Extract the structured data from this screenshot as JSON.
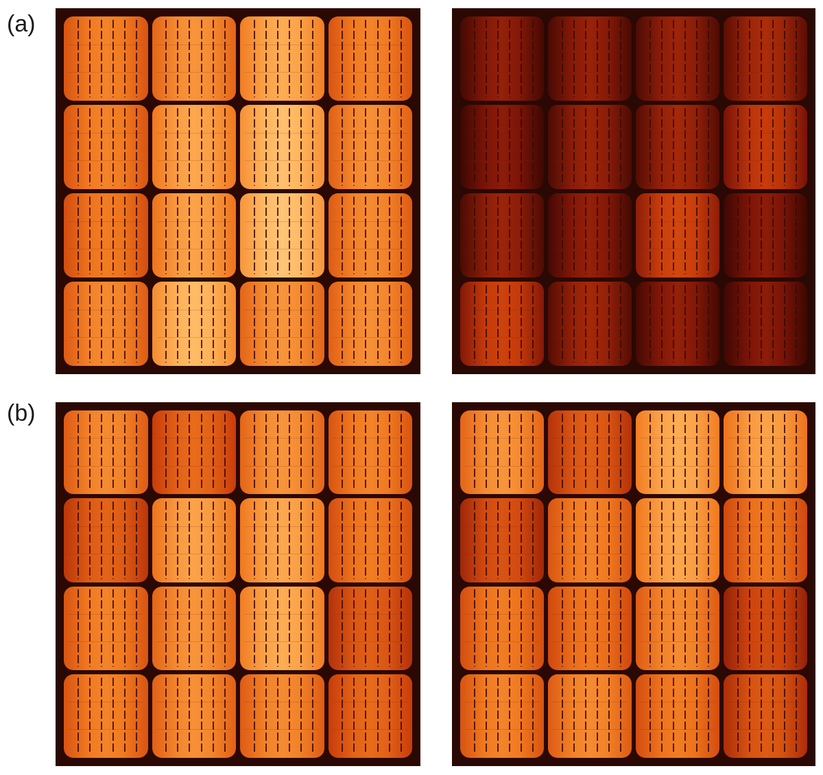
{
  "labels": {
    "a": "(a)",
    "b": "(b)"
  },
  "colors": {
    "frame": "#2a0803",
    "background": "#ffffff",
    "label": "#1a1a1a"
  },
  "panels": [
    {
      "id": "a-left",
      "brightness": [
        [
          0.55,
          0.62,
          0.72,
          0.55
        ],
        [
          0.55,
          0.7,
          0.8,
          0.6
        ],
        [
          0.52,
          0.68,
          0.82,
          0.58
        ],
        [
          0.58,
          0.78,
          0.62,
          0.6
        ]
      ]
    },
    {
      "id": "a-right",
      "brightness": [
        [
          0.12,
          0.13,
          0.14,
          0.18
        ],
        [
          0.1,
          0.14,
          0.16,
          0.25
        ],
        [
          0.14,
          0.12,
          0.3,
          0.1
        ],
        [
          0.28,
          0.16,
          0.12,
          0.1
        ]
      ]
    },
    {
      "id": "b-left",
      "brightness": [
        [
          0.58,
          0.45,
          0.62,
          0.55
        ],
        [
          0.42,
          0.68,
          0.7,
          0.52
        ],
        [
          0.55,
          0.62,
          0.72,
          0.4
        ],
        [
          0.55,
          0.6,
          0.58,
          0.45
        ]
      ]
    },
    {
      "id": "b-right",
      "brightness": [
        [
          0.62,
          0.4,
          0.72,
          0.68
        ],
        [
          0.35,
          0.55,
          0.7,
          0.5
        ],
        [
          0.52,
          0.5,
          0.58,
          0.32
        ],
        [
          0.55,
          0.58,
          0.52,
          0.38
        ]
      ]
    }
  ]
}
